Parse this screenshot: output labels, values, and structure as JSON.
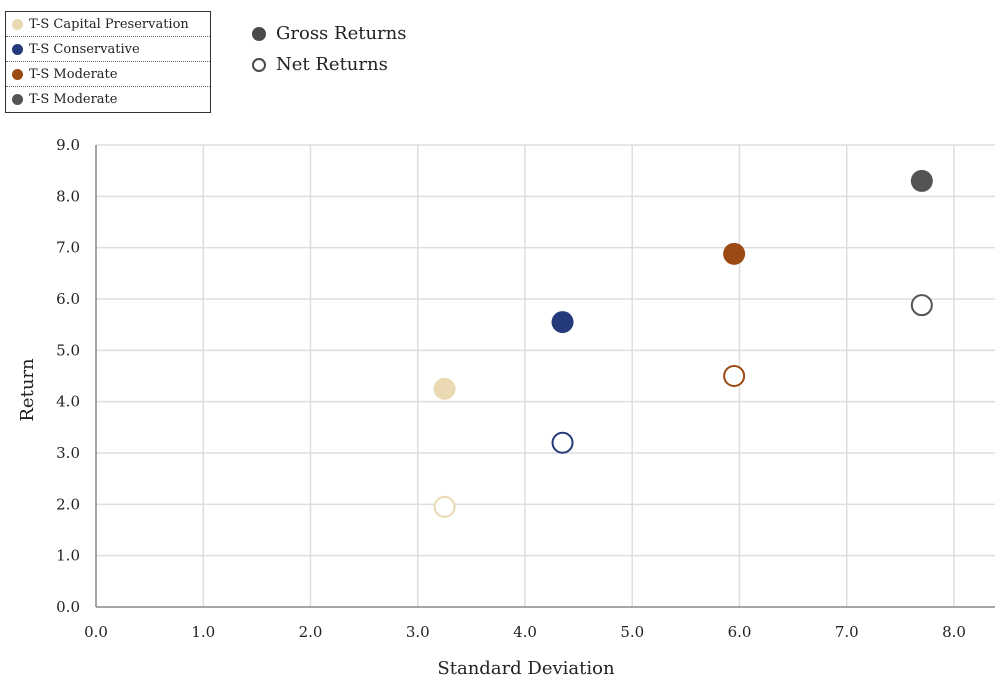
{
  "chart_data": {
    "type": "scatter",
    "xlabel": "Standard Deviation",
    "ylabel": "Return",
    "xlim": [
      0,
      8.0
    ],
    "ylim": [
      0,
      9.0
    ],
    "xticks": [
      "0.0",
      "1.0",
      "2.0",
      "3.0",
      "4.0",
      "5.0",
      "6.0",
      "7.0",
      "8.0"
    ],
    "yticks": [
      "0.0",
      "1.0",
      "2.0",
      "3.0",
      "4.0",
      "5.0",
      "6.0",
      "7.0",
      "8.0",
      "9.0"
    ],
    "grid": true,
    "series_legend": [
      {
        "name": "T-S Capital Preservation",
        "color": "#ead9b3"
      },
      {
        "name": "T-S Conservative",
        "color": "#243a7a"
      },
      {
        "name": "T-S Moderate",
        "color": "#9c4a14"
      },
      {
        "name": "T-S Moderate",
        "color": "#545454"
      }
    ],
    "type_legend": [
      {
        "label": "Gross Returns",
        "style": "filled"
      },
      {
        "label": "Net Returns",
        "style": "hollow"
      }
    ],
    "points": [
      {
        "series": 0,
        "kind": "gross",
        "x": 3.25,
        "y": 4.25
      },
      {
        "series": 0,
        "kind": "net",
        "x": 3.25,
        "y": 1.95
      },
      {
        "series": 1,
        "kind": "gross",
        "x": 4.35,
        "y": 5.55
      },
      {
        "series": 1,
        "kind": "net",
        "x": 4.35,
        "y": 3.2
      },
      {
        "series": 2,
        "kind": "gross",
        "x": 5.95,
        "y": 6.88
      },
      {
        "series": 2,
        "kind": "net",
        "x": 5.95,
        "y": 4.5
      },
      {
        "series": 3,
        "kind": "gross",
        "x": 7.7,
        "y": 8.3
      },
      {
        "series": 3,
        "kind": "net",
        "x": 7.7,
        "y": 5.88
      }
    ]
  }
}
